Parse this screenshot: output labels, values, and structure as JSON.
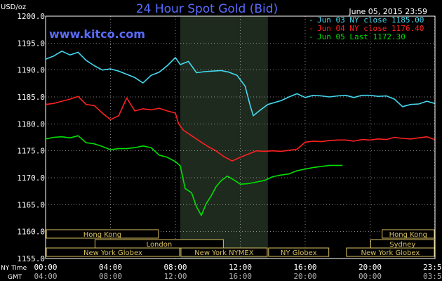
{
  "chart_data": {
    "type": "line",
    "title": "24 Hour Spot Gold (Bid)",
    "watermark": "www.kitco.com",
    "date_label": "June 05, 2015 23:59",
    "ylabel": "USD/oz",
    "ylim": [
      1155.0,
      1200.0
    ],
    "y_ticks": [
      "1200.0",
      "1195.0",
      "1190.0",
      "1185.0",
      "1180.0",
      "1175.0",
      "1170.0",
      "1165.0",
      "1160.0",
      "1155.0"
    ],
    "xlim": [
      0,
      24
    ],
    "x_ticks_ny": [
      "00:00",
      "04:00",
      "08:00",
      "12:00",
      "16:00",
      "20:00",
      "23:59"
    ],
    "x_ticks_gmt": [
      "04:00",
      "08:00",
      "12:00",
      "16:00",
      "20:00",
      "00:00",
      "03:59"
    ],
    "x_axis_label_ny": "NY Time",
    "x_axis_label_gmt": "GMT",
    "highlight_range": [
      8.3,
      13.7
    ],
    "colors": {
      "background": "#000000",
      "grid": "#ffffff",
      "highlight": "#1e2a1e",
      "title": "#5a6cff",
      "watermark": "#5a6cff",
      "market_bar": "#d8c060"
    },
    "series": [
      {
        "name": "Jun 03 NY close 1185.00",
        "color": "#44d8f0",
        "x": [
          0,
          0.5,
          1,
          1.5,
          2,
          2.5,
          3,
          3.5,
          4,
          4.5,
          5,
          5.5,
          6,
          6.5,
          7,
          7.5,
          8,
          8.3,
          8.8,
          9.3,
          9.8,
          10.3,
          10.8,
          11.3,
          11.8,
          12.3,
          12.6,
          12.8,
          13.2,
          13.7,
          14.5,
          15,
          15.5,
          16,
          16.5,
          17,
          17.5,
          18,
          18.5,
          19,
          19.5,
          20,
          20.5,
          21,
          21.5,
          22,
          22.5,
          23,
          23.5,
          23.98
        ],
        "y": [
          1192.0,
          1192.6,
          1193.5,
          1192.8,
          1193.3,
          1191.8,
          1190.8,
          1190.0,
          1190.2,
          1189.8,
          1189.2,
          1188.6,
          1187.6,
          1189.0,
          1189.6,
          1190.8,
          1192.3,
          1191.0,
          1191.6,
          1189.5,
          1189.7,
          1189.8,
          1189.9,
          1189.6,
          1189.0,
          1187.0,
          1183.5,
          1181.5,
          1182.5,
          1183.6,
          1184.3,
          1185.0,
          1185.6,
          1184.9,
          1185.3,
          1185.2,
          1185.0,
          1185.2,
          1185.3,
          1184.9,
          1185.3,
          1185.3,
          1185.1,
          1185.2,
          1184.6,
          1183.2,
          1183.6,
          1183.7,
          1184.2,
          1183.8
        ]
      },
      {
        "name": "Jun 04 NY close 1176.40",
        "color": "#ff2020",
        "x": [
          0,
          0.5,
          1,
          1.5,
          2,
          2.5,
          3,
          3.5,
          4,
          4.5,
          5,
          5.5,
          6,
          6.5,
          7,
          7.5,
          8,
          8.2,
          8.5,
          9,
          9.5,
          10,
          10.5,
          11,
          11.5,
          12,
          12.5,
          13,
          13.5,
          14,
          14.5,
          15,
          15.5,
          16,
          16.5,
          17,
          17.5,
          18,
          18.5,
          19,
          19.5,
          20,
          20.5,
          21,
          21.5,
          22,
          22.5,
          23,
          23.5,
          23.98
        ],
        "y": [
          1183.6,
          1183.8,
          1184.2,
          1184.6,
          1185.1,
          1183.6,
          1183.4,
          1182.0,
          1180.8,
          1181.5,
          1184.8,
          1182.4,
          1182.8,
          1182.6,
          1182.9,
          1182.4,
          1182.0,
          1180.0,
          1178.8,
          1177.8,
          1176.8,
          1175.8,
          1175.0,
          1173.9,
          1173.1,
          1173.8,
          1174.4,
          1175.0,
          1174.9,
          1175.0,
          1174.9,
          1175.1,
          1175.3,
          1176.6,
          1176.8,
          1176.7,
          1176.9,
          1177.0,
          1177.0,
          1176.8,
          1177.1,
          1177.0,
          1177.2,
          1177.1,
          1177.5,
          1177.3,
          1177.2,
          1177.4,
          1177.6,
          1177.1
        ]
      },
      {
        "name": "Jun 05 Last 1172.30",
        "color": "#00e000",
        "x": [
          0,
          0.5,
          1,
          1.5,
          2,
          2.5,
          3,
          3.5,
          4,
          4.5,
          5,
          5.5,
          6,
          6.5,
          7,
          7.5,
          8,
          8.3,
          8.6,
          9,
          9.3,
          9.6,
          9.9,
          10.2,
          10.5,
          10.8,
          11.2,
          11.6,
          12,
          12.5,
          13,
          13.5,
          14,
          14.5,
          15,
          15.5,
          16,
          16.5,
          17,
          17.5,
          18,
          18.3
        ],
        "y": [
          1177.2,
          1177.5,
          1177.6,
          1177.4,
          1177.8,
          1176.5,
          1176.3,
          1175.8,
          1175.2,
          1175.4,
          1175.4,
          1175.6,
          1175.9,
          1175.6,
          1174.2,
          1173.8,
          1173.0,
          1172.2,
          1168.0,
          1167.2,
          1164.6,
          1163.0,
          1165.2,
          1166.6,
          1168.3,
          1169.4,
          1170.3,
          1169.6,
          1168.8,
          1168.9,
          1169.2,
          1169.5,
          1170.2,
          1170.5,
          1170.7,
          1171.3,
          1171.6,
          1171.9,
          1172.1,
          1172.3,
          1172.3,
          1172.3
        ]
      }
    ],
    "markets": [
      {
        "name": "Hong Kong",
        "row": 0,
        "start": 0,
        "end": 7.0
      },
      {
        "name": "Hong Kong",
        "row": 0,
        "start": 20.7,
        "end": 24
      },
      {
        "name": "London",
        "row": 1,
        "start": 3.0,
        "end": 11.0
      },
      {
        "name": "Sydney",
        "row": 1,
        "start": 20.0,
        "end": 24
      },
      {
        "name": "New York Globex",
        "row": 2,
        "start": 0,
        "end": 8.3
      },
      {
        "name": "New York NYMEX",
        "row": 2,
        "start": 8.3,
        "end": 13.7
      },
      {
        "name": "NY Globex",
        "row": 2,
        "start": 13.7,
        "end": 17.5
      },
      {
        "name": "New York Globex",
        "row": 2,
        "start": 18.5,
        "end": 24
      }
    ]
  }
}
